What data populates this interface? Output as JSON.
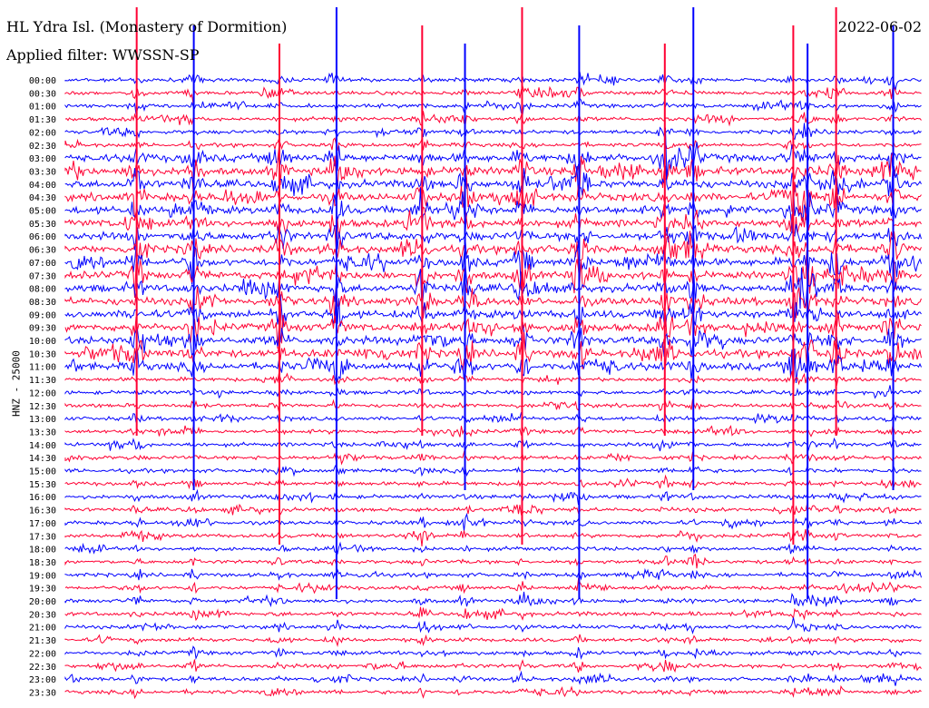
{
  "header": {
    "station_title": "HL Ydra Isl. (Monastery of Dormition)",
    "filter_label": "Applied filter: WWSSN-SP",
    "date": "2022-06-02"
  },
  "chart_data": {
    "type": "line",
    "title": "HL Ydra Isl. (Monastery of Dormition)",
    "ylabel": "HNZ - 25000",
    "colors": {
      "even_row": "#0000ff",
      "odd_row": "#ff0033"
    },
    "rows": [
      "00:00",
      "00:30",
      "01:00",
      "01:30",
      "02:00",
      "02:30",
      "03:00",
      "03:30",
      "04:00",
      "04:30",
      "05:00",
      "05:30",
      "06:00",
      "06:30",
      "07:00",
      "07:30",
      "08:00",
      "08:30",
      "09:00",
      "09:30",
      "10:00",
      "10:30",
      "11:00",
      "11:30",
      "12:00",
      "12:30",
      "13:00",
      "13:30",
      "14:00",
      "14:30",
      "15:00",
      "15:30",
      "16:00",
      "16:30",
      "17:00",
      "17:30",
      "18:00",
      "18:30",
      "19:00",
      "19:30",
      "20:00",
      "20:30",
      "21:00",
      "21:30",
      "22:00",
      "22:30",
      "23:00",
      "23:30"
    ],
    "tall_spikes_minutes": [
      2.5,
      4.5,
      7.5,
      9.5,
      12.5,
      14,
      16,
      18,
      21,
      22,
      25.5,
      26,
      27,
      29
    ],
    "activity_window_rows": [
      6,
      22
    ]
  }
}
